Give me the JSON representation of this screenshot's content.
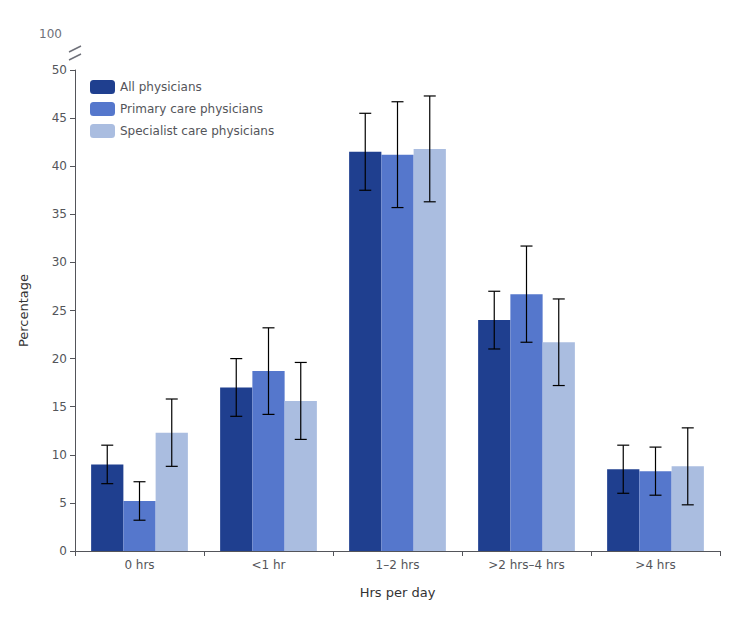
{
  "chart_data": {
    "type": "bar",
    "xlabel": "Hrs per day",
    "ylabel": "Percentage",
    "categories": [
      "0 hrs",
      "<1 hr",
      "1–2 hrs",
      ">2 hrs–4 hrs",
      ">4 hrs"
    ],
    "series": [
      {
        "name": "All physicians",
        "color": "#1f3f8f",
        "values": [
          9.0,
          17.0,
          41.5,
          24.0,
          8.5
        ],
        "errors": [
          2.0,
          3.0,
          4.0,
          3.0,
          2.5
        ]
      },
      {
        "name": "Primary care physicians",
        "color": "#5577cc",
        "values": [
          5.2,
          18.7,
          41.2,
          26.7,
          8.3
        ],
        "errors": [
          2.0,
          4.5,
          5.5,
          5.0,
          2.5
        ]
      },
      {
        "name": "Specialist care physicians",
        "color": "#aabde0",
        "values": [
          12.3,
          15.6,
          41.8,
          21.7,
          8.8
        ],
        "errors": [
          3.5,
          4.0,
          5.5,
          4.5,
          4.0
        ]
      }
    ],
    "ylim": [
      0,
      50
    ],
    "yticks": [
      0,
      5,
      10,
      15,
      20,
      25,
      30,
      35,
      40,
      45,
      50
    ],
    "grid": false,
    "legend": "upper left",
    "annotations": [
      "100"
    ]
  }
}
